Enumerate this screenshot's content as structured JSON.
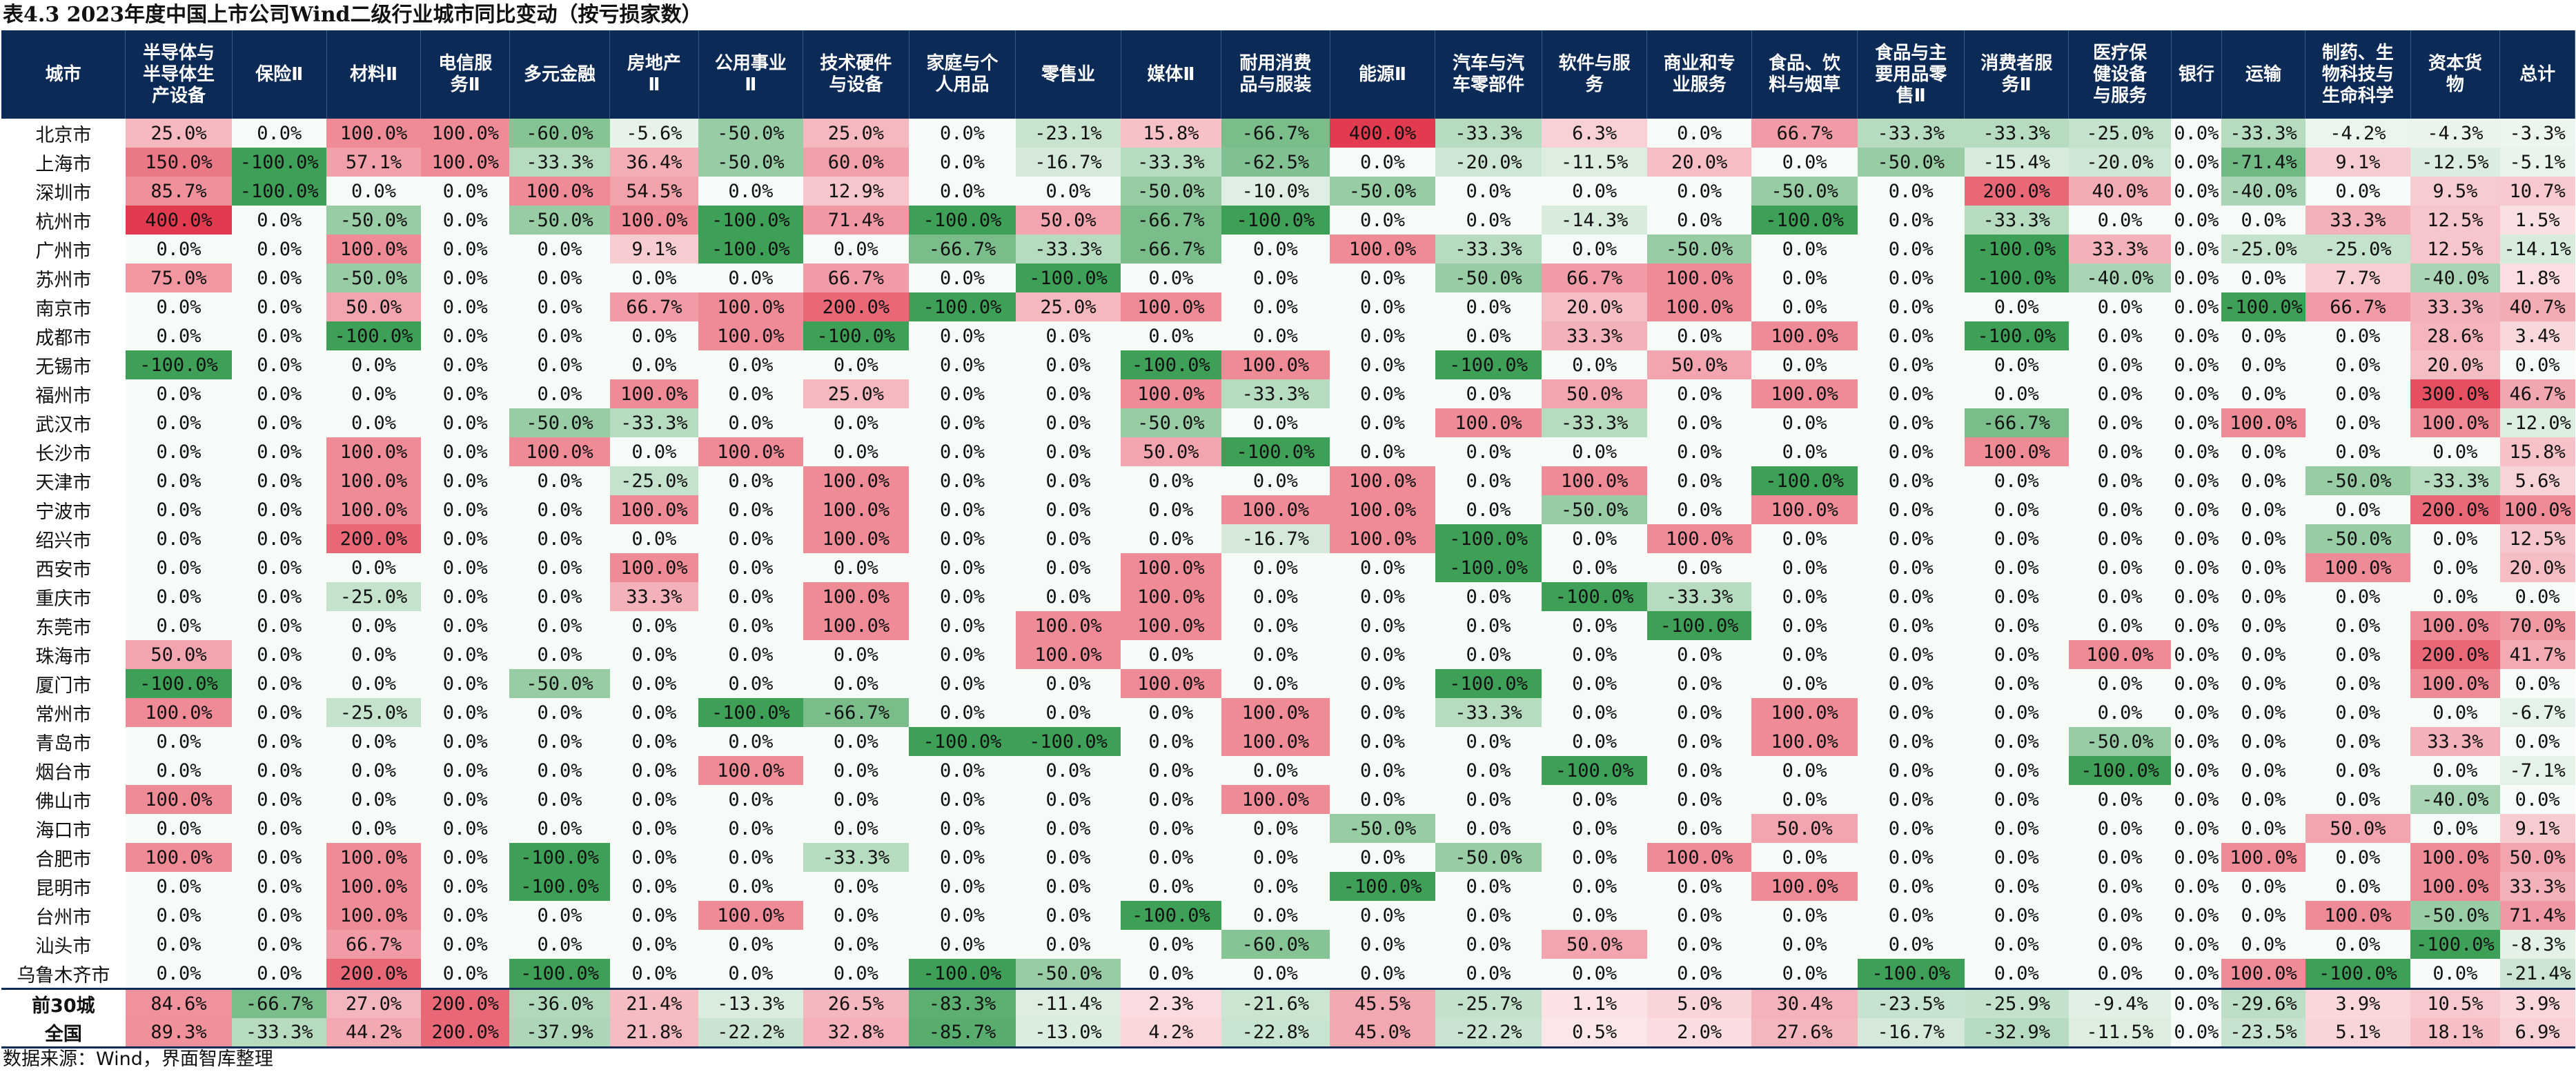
{
  "title": "表4.3 2023年度中国上市公司Wind二级行业城市同比变动（按亏损家数）",
  "source": "数据来源：Wind，界面智库整理",
  "colors": {
    "header_bg": "#0b2a56",
    "max_pos": "#e23a4e",
    "max_neg": "#3e9f57",
    "neutral": "#ffffff"
  },
  "columns": [
    "城市",
    "半导体与\n半导体生\n产设备",
    "保险Ⅱ",
    "材料Ⅱ",
    "电信服\n务Ⅱ",
    "多元金融",
    "房地产\nⅡ",
    "公用事业\nⅡ",
    "技术硬件\n与设备",
    "家庭与个\n人用品",
    "零售业",
    "媒体Ⅱ",
    "耐用消费\n品与服装",
    "能源Ⅱ",
    "汽车与汽\n车零部件",
    "软件与服\n务",
    "商业和专\n业服务",
    "食品、饮\n料与烟草",
    "食品与主\n要用品零\n售Ⅱ",
    "消费者服\n务Ⅱ",
    "医疗保\n健设备\n与服务",
    "银行",
    "运输",
    "制药、生\n物科技与\n生命科学",
    "资本货\n物",
    "总计"
  ],
  "rows": [
    [
      "北京市",
      "25.0%",
      "0.0%",
      "100.0%",
      "100.0%",
      "-60.0%",
      "-5.6%",
      "-50.0%",
      "25.0%",
      "0.0%",
      "-23.1%",
      "15.8%",
      "-66.7%",
      "400.0%",
      "-33.3%",
      "6.3%",
      "0.0%",
      "66.7%",
      "-33.3%",
      "-33.3%",
      "-25.0%",
      "0.0%",
      "-33.3%",
      "-4.2%",
      "-4.3%",
      "-3.3%"
    ],
    [
      "上海市",
      "150.0%",
      "-100.0%",
      "57.1%",
      "100.0%",
      "-33.3%",
      "36.4%",
      "-50.0%",
      "60.0%",
      "0.0%",
      "-16.7%",
      "-33.3%",
      "-62.5%",
      "0.0%",
      "-20.0%",
      "-11.5%",
      "20.0%",
      "0.0%",
      "-50.0%",
      "-15.4%",
      "-20.0%",
      "0.0%",
      "-71.4%",
      "9.1%",
      "-12.5%",
      "-5.1%"
    ],
    [
      "深圳市",
      "85.7%",
      "-100.0%",
      "0.0%",
      "0.0%",
      "100.0%",
      "54.5%",
      "0.0%",
      "12.9%",
      "0.0%",
      "0.0%",
      "-50.0%",
      "-10.0%",
      "-50.0%",
      "0.0%",
      "0.0%",
      "0.0%",
      "-50.0%",
      "0.0%",
      "200.0%",
      "40.0%",
      "0.0%",
      "-40.0%",
      "0.0%",
      "9.5%",
      "10.7%"
    ],
    [
      "杭州市",
      "400.0%",
      "0.0%",
      "-50.0%",
      "0.0%",
      "-50.0%",
      "100.0%",
      "-100.0%",
      "71.4%",
      "-100.0%",
      "50.0%",
      "-66.7%",
      "-100.0%",
      "0.0%",
      "0.0%",
      "-14.3%",
      "0.0%",
      "-100.0%",
      "0.0%",
      "-33.3%",
      "0.0%",
      "0.0%",
      "0.0%",
      "33.3%",
      "12.5%",
      "1.5%"
    ],
    [
      "广州市",
      "0.0%",
      "0.0%",
      "100.0%",
      "0.0%",
      "0.0%",
      "9.1%",
      "-100.0%",
      "0.0%",
      "-66.7%",
      "-33.3%",
      "-66.7%",
      "0.0%",
      "100.0%",
      "-33.3%",
      "0.0%",
      "-50.0%",
      "0.0%",
      "0.0%",
      "-100.0%",
      "33.3%",
      "0.0%",
      "-25.0%",
      "-25.0%",
      "12.5%",
      "-14.1%"
    ],
    [
      "苏州市",
      "75.0%",
      "0.0%",
      "-50.0%",
      "0.0%",
      "0.0%",
      "0.0%",
      "0.0%",
      "66.7%",
      "0.0%",
      "-100.0%",
      "0.0%",
      "0.0%",
      "0.0%",
      "-50.0%",
      "66.7%",
      "100.0%",
      "0.0%",
      "0.0%",
      "-100.0%",
      "-40.0%",
      "0.0%",
      "0.0%",
      "7.7%",
      "-40.0%",
      "1.8%"
    ],
    [
      "南京市",
      "0.0%",
      "0.0%",
      "50.0%",
      "0.0%",
      "0.0%",
      "66.7%",
      "100.0%",
      "200.0%",
      "-100.0%",
      "25.0%",
      "100.0%",
      "0.0%",
      "0.0%",
      "0.0%",
      "20.0%",
      "100.0%",
      "0.0%",
      "0.0%",
      "0.0%",
      "0.0%",
      "0.0%",
      "-100.0%",
      "66.7%",
      "33.3%",
      "40.7%"
    ],
    [
      "成都市",
      "0.0%",
      "0.0%",
      "-100.0%",
      "0.0%",
      "0.0%",
      "0.0%",
      "100.0%",
      "-100.0%",
      "0.0%",
      "0.0%",
      "0.0%",
      "0.0%",
      "0.0%",
      "0.0%",
      "33.3%",
      "0.0%",
      "100.0%",
      "0.0%",
      "-100.0%",
      "0.0%",
      "0.0%",
      "0.0%",
      "0.0%",
      "28.6%",
      "3.4%"
    ],
    [
      "无锡市",
      "-100.0%",
      "0.0%",
      "0.0%",
      "0.0%",
      "0.0%",
      "0.0%",
      "0.0%",
      "0.0%",
      "0.0%",
      "0.0%",
      "-100.0%",
      "100.0%",
      "0.0%",
      "-100.0%",
      "0.0%",
      "50.0%",
      "0.0%",
      "0.0%",
      "0.0%",
      "0.0%",
      "0.0%",
      "0.0%",
      "0.0%",
      "20.0%",
      "0.0%"
    ],
    [
      "福州市",
      "0.0%",
      "0.0%",
      "0.0%",
      "0.0%",
      "0.0%",
      "100.0%",
      "0.0%",
      "25.0%",
      "0.0%",
      "0.0%",
      "100.0%",
      "-33.3%",
      "0.0%",
      "0.0%",
      "50.0%",
      "0.0%",
      "100.0%",
      "0.0%",
      "0.0%",
      "0.0%",
      "0.0%",
      "0.0%",
      "0.0%",
      "300.0%",
      "46.7%"
    ],
    [
      "武汉市",
      "0.0%",
      "0.0%",
      "0.0%",
      "0.0%",
      "-50.0%",
      "-33.3%",
      "0.0%",
      "0.0%",
      "0.0%",
      "0.0%",
      "-50.0%",
      "0.0%",
      "0.0%",
      "100.0%",
      "-33.3%",
      "0.0%",
      "0.0%",
      "0.0%",
      "-66.7%",
      "0.0%",
      "0.0%",
      "100.0%",
      "0.0%",
      "100.0%",
      "-12.0%"
    ],
    [
      "长沙市",
      "0.0%",
      "0.0%",
      "100.0%",
      "0.0%",
      "100.0%",
      "0.0%",
      "100.0%",
      "0.0%",
      "0.0%",
      "0.0%",
      "50.0%",
      "-100.0%",
      "0.0%",
      "0.0%",
      "0.0%",
      "0.0%",
      "0.0%",
      "0.0%",
      "100.0%",
      "0.0%",
      "0.0%",
      "0.0%",
      "0.0%",
      "0.0%",
      "15.8%"
    ],
    [
      "天津市",
      "0.0%",
      "0.0%",
      "100.0%",
      "0.0%",
      "0.0%",
      "-25.0%",
      "0.0%",
      "100.0%",
      "0.0%",
      "0.0%",
      "0.0%",
      "0.0%",
      "100.0%",
      "0.0%",
      "100.0%",
      "0.0%",
      "-100.0%",
      "0.0%",
      "0.0%",
      "0.0%",
      "0.0%",
      "0.0%",
      "-50.0%",
      "-33.3%",
      "5.6%"
    ],
    [
      "宁波市",
      "0.0%",
      "0.0%",
      "100.0%",
      "0.0%",
      "0.0%",
      "100.0%",
      "0.0%",
      "100.0%",
      "0.0%",
      "0.0%",
      "0.0%",
      "100.0%",
      "100.0%",
      "0.0%",
      "-50.0%",
      "0.0%",
      "100.0%",
      "0.0%",
      "0.0%",
      "0.0%",
      "0.0%",
      "0.0%",
      "0.0%",
      "200.0%",
      "100.0%"
    ],
    [
      "绍兴市",
      "0.0%",
      "0.0%",
      "200.0%",
      "0.0%",
      "0.0%",
      "0.0%",
      "0.0%",
      "100.0%",
      "0.0%",
      "0.0%",
      "0.0%",
      "-16.7%",
      "100.0%",
      "-100.0%",
      "0.0%",
      "100.0%",
      "0.0%",
      "0.0%",
      "0.0%",
      "0.0%",
      "0.0%",
      "0.0%",
      "-50.0%",
      "0.0%",
      "12.5%"
    ],
    [
      "西安市",
      "0.0%",
      "0.0%",
      "0.0%",
      "0.0%",
      "0.0%",
      "100.0%",
      "0.0%",
      "0.0%",
      "0.0%",
      "0.0%",
      "100.0%",
      "0.0%",
      "0.0%",
      "-100.0%",
      "0.0%",
      "0.0%",
      "0.0%",
      "0.0%",
      "0.0%",
      "0.0%",
      "0.0%",
      "0.0%",
      "100.0%",
      "0.0%",
      "20.0%"
    ],
    [
      "重庆市",
      "0.0%",
      "0.0%",
      "-25.0%",
      "0.0%",
      "0.0%",
      "33.3%",
      "0.0%",
      "100.0%",
      "0.0%",
      "0.0%",
      "100.0%",
      "0.0%",
      "0.0%",
      "0.0%",
      "-100.0%",
      "-33.3%",
      "0.0%",
      "0.0%",
      "0.0%",
      "0.0%",
      "0.0%",
      "0.0%",
      "0.0%",
      "0.0%",
      "0.0%"
    ],
    [
      "东莞市",
      "0.0%",
      "0.0%",
      "0.0%",
      "0.0%",
      "0.0%",
      "0.0%",
      "0.0%",
      "100.0%",
      "0.0%",
      "100.0%",
      "100.0%",
      "0.0%",
      "0.0%",
      "0.0%",
      "0.0%",
      "-100.0%",
      "0.0%",
      "0.0%",
      "0.0%",
      "0.0%",
      "0.0%",
      "0.0%",
      "0.0%",
      "100.0%",
      "70.0%"
    ],
    [
      "珠海市",
      "50.0%",
      "0.0%",
      "0.0%",
      "0.0%",
      "0.0%",
      "0.0%",
      "0.0%",
      "0.0%",
      "0.0%",
      "100.0%",
      "0.0%",
      "0.0%",
      "0.0%",
      "0.0%",
      "0.0%",
      "0.0%",
      "0.0%",
      "0.0%",
      "0.0%",
      "100.0%",
      "0.0%",
      "0.0%",
      "0.0%",
      "200.0%",
      "41.7%"
    ],
    [
      "厦门市",
      "-100.0%",
      "0.0%",
      "0.0%",
      "0.0%",
      "-50.0%",
      "0.0%",
      "0.0%",
      "0.0%",
      "0.0%",
      "0.0%",
      "100.0%",
      "0.0%",
      "0.0%",
      "-100.0%",
      "0.0%",
      "0.0%",
      "0.0%",
      "0.0%",
      "0.0%",
      "0.0%",
      "0.0%",
      "0.0%",
      "0.0%",
      "100.0%",
      "0.0%"
    ],
    [
      "常州市",
      "100.0%",
      "0.0%",
      "-25.0%",
      "0.0%",
      "0.0%",
      "0.0%",
      "-100.0%",
      "-66.7%",
      "0.0%",
      "0.0%",
      "0.0%",
      "100.0%",
      "0.0%",
      "-33.3%",
      "0.0%",
      "0.0%",
      "100.0%",
      "0.0%",
      "0.0%",
      "0.0%",
      "0.0%",
      "0.0%",
      "0.0%",
      "0.0%",
      "-6.7%"
    ],
    [
      "青岛市",
      "0.0%",
      "0.0%",
      "0.0%",
      "0.0%",
      "0.0%",
      "0.0%",
      "0.0%",
      "0.0%",
      "-100.0%",
      "-100.0%",
      "0.0%",
      "100.0%",
      "0.0%",
      "0.0%",
      "0.0%",
      "0.0%",
      "100.0%",
      "0.0%",
      "0.0%",
      "-50.0%",
      "0.0%",
      "0.0%",
      "0.0%",
      "33.3%",
      "0.0%"
    ],
    [
      "烟台市",
      "0.0%",
      "0.0%",
      "0.0%",
      "0.0%",
      "0.0%",
      "0.0%",
      "100.0%",
      "0.0%",
      "0.0%",
      "0.0%",
      "0.0%",
      "0.0%",
      "0.0%",
      "0.0%",
      "-100.0%",
      "0.0%",
      "0.0%",
      "0.0%",
      "0.0%",
      "-100.0%",
      "0.0%",
      "0.0%",
      "0.0%",
      "0.0%",
      "-7.1%"
    ],
    [
      "佛山市",
      "100.0%",
      "0.0%",
      "0.0%",
      "0.0%",
      "0.0%",
      "0.0%",
      "0.0%",
      "0.0%",
      "0.0%",
      "0.0%",
      "0.0%",
      "100.0%",
      "0.0%",
      "0.0%",
      "0.0%",
      "0.0%",
      "0.0%",
      "0.0%",
      "0.0%",
      "0.0%",
      "0.0%",
      "0.0%",
      "0.0%",
      "-40.0%",
      "0.0%"
    ],
    [
      "海口市",
      "0.0%",
      "0.0%",
      "0.0%",
      "0.0%",
      "0.0%",
      "0.0%",
      "0.0%",
      "0.0%",
      "0.0%",
      "0.0%",
      "0.0%",
      "0.0%",
      "-50.0%",
      "0.0%",
      "0.0%",
      "0.0%",
      "50.0%",
      "0.0%",
      "0.0%",
      "0.0%",
      "0.0%",
      "0.0%",
      "50.0%",
      "0.0%",
      "9.1%"
    ],
    [
      "合肥市",
      "100.0%",
      "0.0%",
      "100.0%",
      "0.0%",
      "-100.0%",
      "0.0%",
      "0.0%",
      "-33.3%",
      "0.0%",
      "0.0%",
      "0.0%",
      "0.0%",
      "0.0%",
      "-50.0%",
      "0.0%",
      "100.0%",
      "0.0%",
      "0.0%",
      "0.0%",
      "0.0%",
      "0.0%",
      "100.0%",
      "0.0%",
      "100.0%",
      "50.0%"
    ],
    [
      "昆明市",
      "0.0%",
      "0.0%",
      "100.0%",
      "0.0%",
      "-100.0%",
      "0.0%",
      "0.0%",
      "0.0%",
      "0.0%",
      "0.0%",
      "0.0%",
      "0.0%",
      "-100.0%",
      "0.0%",
      "0.0%",
      "0.0%",
      "100.0%",
      "0.0%",
      "0.0%",
      "0.0%",
      "0.0%",
      "0.0%",
      "0.0%",
      "100.0%",
      "33.3%"
    ],
    [
      "台州市",
      "0.0%",
      "0.0%",
      "100.0%",
      "0.0%",
      "0.0%",
      "0.0%",
      "100.0%",
      "0.0%",
      "0.0%",
      "0.0%",
      "-100.0%",
      "0.0%",
      "0.0%",
      "0.0%",
      "0.0%",
      "0.0%",
      "0.0%",
      "0.0%",
      "0.0%",
      "0.0%",
      "0.0%",
      "0.0%",
      "100.0%",
      "-50.0%",
      "71.4%"
    ],
    [
      "汕头市",
      "0.0%",
      "0.0%",
      "66.7%",
      "0.0%",
      "0.0%",
      "0.0%",
      "0.0%",
      "0.0%",
      "0.0%",
      "0.0%",
      "0.0%",
      "-60.0%",
      "0.0%",
      "0.0%",
      "50.0%",
      "0.0%",
      "0.0%",
      "0.0%",
      "0.0%",
      "0.0%",
      "0.0%",
      "0.0%",
      "0.0%",
      "-100.0%",
      "-8.3%"
    ],
    [
      "乌鲁木齐市",
      "0.0%",
      "0.0%",
      "200.0%",
      "0.0%",
      "-100.0%",
      "0.0%",
      "0.0%",
      "0.0%",
      "-100.0%",
      "-50.0%",
      "0.0%",
      "0.0%",
      "0.0%",
      "0.0%",
      "0.0%",
      "0.0%",
      "0.0%",
      "-100.0%",
      "0.0%",
      "0.0%",
      "0.0%",
      "100.0%",
      "-100.0%",
      "0.0%",
      "-21.4%"
    ]
  ],
  "summary_rows": [
    [
      "前30城",
      "84.6%",
      "-66.7%",
      "27.0%",
      "200.0%",
      "-36.0%",
      "21.4%",
      "-13.3%",
      "26.5%",
      "-83.3%",
      "-11.4%",
      "2.3%",
      "-21.6%",
      "45.5%",
      "-25.7%",
      "1.1%",
      "5.0%",
      "30.4%",
      "-23.5%",
      "-25.9%",
      "-9.4%",
      "0.0%",
      "-29.6%",
      "3.9%",
      "10.5%",
      "3.9%"
    ],
    [
      "全国",
      "89.3%",
      "-33.3%",
      "44.2%",
      "200.0%",
      "-37.9%",
      "21.8%",
      "-22.2%",
      "32.8%",
      "-85.7%",
      "-13.0%",
      "4.2%",
      "-22.8%",
      "45.0%",
      "-22.2%",
      "0.5%",
      "2.0%",
      "27.6%",
      "-16.7%",
      "-32.9%",
      "-11.5%",
      "0.0%",
      "-23.5%",
      "5.1%",
      "18.1%",
      "6.9%"
    ]
  ]
}
